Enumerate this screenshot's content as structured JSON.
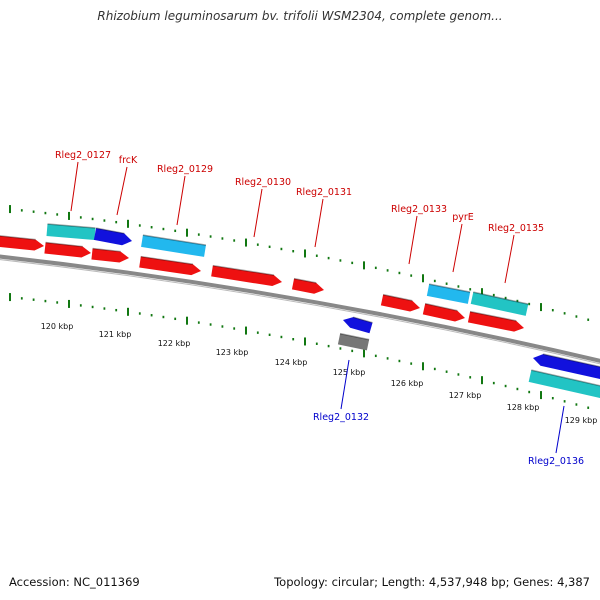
{
  "title": "Rhizobium leguminosarum bv. trifolii WSM2304, complete genom...",
  "footer": {
    "accession": "Accession: NC_011369",
    "topology": "Topology: circular; Length: 4,537,948 bp; Genes: 4,387"
  },
  "colors": {
    "forward_label": "#cc0000",
    "reverse_label": "#0000cc",
    "cds_red": "#ee1111",
    "cds_cyan": "#22c4c4",
    "cds_lightblue": "#22b8ee",
    "cds_blue": "#1111dd",
    "cds_gray": "#777777",
    "backbone": "#888888",
    "ticks": "#117711"
  },
  "scale_labels": [
    "120 kbp",
    "121 kbp",
    "122 kbp",
    "123 kbp",
    "124 kbp",
    "125 kbp",
    "126 kbp",
    "127 kbp",
    "128 kbp",
    "129 kbp"
  ],
  "gene_labels": {
    "forward": [
      "Rleg2_0127",
      "frcK",
      "Rleg2_0129",
      "Rleg2_0130",
      "Rleg2_0131",
      "Rleg2_0133",
      "pyrE",
      "Rleg2_0135"
    ],
    "reverse": [
      "Rleg2_0132",
      "Rleg2_0136"
    ]
  }
}
